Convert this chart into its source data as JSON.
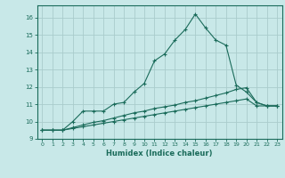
{
  "xlabel": "Humidex (Indice chaleur)",
  "ylabel": "",
  "background_color": "#c8e8e8",
  "grid_color": "#aacccc",
  "line_color": "#1a6b5a",
  "xlim": [
    -0.5,
    23.5
  ],
  "ylim": [
    9,
    16.7
  ],
  "yticks": [
    9,
    10,
    11,
    12,
    13,
    14,
    15,
    16
  ],
  "xticks": [
    0,
    1,
    2,
    3,
    4,
    5,
    6,
    7,
    8,
    9,
    10,
    11,
    12,
    13,
    14,
    15,
    16,
    17,
    18,
    19,
    20,
    21,
    22,
    23
  ],
  "series1_x": [
    0,
    1,
    2,
    3,
    4,
    5,
    6,
    7,
    8,
    9,
    10,
    11,
    12,
    13,
    14,
    15,
    16,
    17,
    18,
    19,
    20,
    21,
    22,
    23
  ],
  "series1_y": [
    9.5,
    9.5,
    9.5,
    10.0,
    10.6,
    10.6,
    10.6,
    11.0,
    11.1,
    11.7,
    12.2,
    13.5,
    13.9,
    14.7,
    15.3,
    16.2,
    15.4,
    14.7,
    14.4,
    12.1,
    11.7,
    11.1,
    10.9,
    10.9
  ],
  "series2_x": [
    0,
    1,
    2,
    3,
    4,
    5,
    6,
    7,
    8,
    9,
    10,
    11,
    12,
    13,
    14,
    15,
    16,
    17,
    18,
    19,
    20,
    21,
    22,
    23
  ],
  "series2_y": [
    9.5,
    9.5,
    9.5,
    9.65,
    9.8,
    9.95,
    10.05,
    10.2,
    10.35,
    10.5,
    10.6,
    10.75,
    10.85,
    10.95,
    11.1,
    11.2,
    11.35,
    11.5,
    11.65,
    11.85,
    11.95,
    11.1,
    10.9,
    10.9
  ],
  "series3_x": [
    0,
    1,
    2,
    3,
    4,
    5,
    6,
    7,
    8,
    9,
    10,
    11,
    12,
    13,
    14,
    15,
    16,
    17,
    18,
    19,
    20,
    21,
    22,
    23
  ],
  "series3_y": [
    9.5,
    9.5,
    9.5,
    9.6,
    9.7,
    9.8,
    9.9,
    10.0,
    10.1,
    10.2,
    10.3,
    10.4,
    10.5,
    10.6,
    10.7,
    10.8,
    10.9,
    11.0,
    11.1,
    11.2,
    11.3,
    10.9,
    10.9,
    10.9
  ]
}
